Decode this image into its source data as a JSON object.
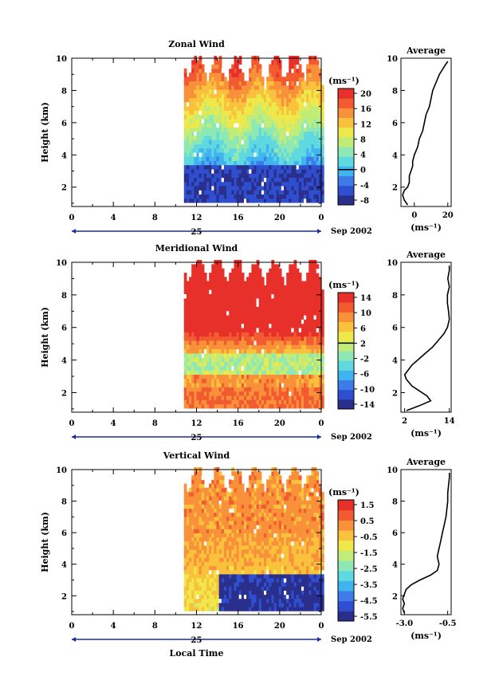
{
  "chart_data": [
    {
      "type": "heatmap",
      "title": "Zonal Wind",
      "ylabel": "Height (km)",
      "y_ticks": [
        "2",
        "4",
        "6",
        "8",
        "10"
      ],
      "ylim": [
        0.8,
        10
      ],
      "x_ticks": [
        "0",
        "4",
        "8",
        "12",
        "16",
        "20",
        "0"
      ],
      "date_day": "25",
      "date_month": "Sep 2002",
      "unit": "(ms⁻¹)",
      "colorbar_ticks": [
        "20",
        "16",
        "12",
        "8",
        "4",
        "0",
        "-4",
        "-8"
      ],
      "colorbar_range": [
        -10,
        22
      ],
      "zero_line": 0,
      "data_window_hours": [
        10.8,
        24
      ],
      "profile": {
        "title": "Average",
        "x_ticks": [
          "0",
          "20"
        ],
        "xlabel": "(ms⁻¹)",
        "xlim": [
          -8,
          22
        ],
        "heights": [
          0.9,
          1.2,
          1.5,
          1.8,
          2.0,
          2.3,
          2.7,
          3.0,
          3.3,
          3.6,
          4.0,
          4.5,
          5.0,
          5.5,
          6.0,
          6.5,
          7.0,
          7.5,
          8.0,
          8.5,
          9.0,
          9.5,
          9.8
        ],
        "values": [
          -4,
          -6,
          -7,
          -6,
          -4,
          -3,
          -3,
          -2,
          -1,
          -1,
          0,
          2,
          3,
          5,
          6,
          7,
          9,
          10,
          11,
          13,
          15,
          18,
          20
        ]
      }
    },
    {
      "type": "heatmap",
      "title": "Meridional Wind",
      "ylabel": "Height (km)",
      "y_ticks": [
        "2",
        "4",
        "6",
        "8",
        "10"
      ],
      "ylim": [
        0.8,
        10
      ],
      "x_ticks": [
        "0",
        "4",
        "8",
        "12",
        "16",
        "20",
        "0"
      ],
      "date_day": "25",
      "date_month": "Sep 2002",
      "unit": "(ms⁻¹)",
      "colorbar_ticks": [
        "14",
        "10",
        "6",
        "2",
        "-2",
        "-6",
        "-10",
        "-14"
      ],
      "colorbar_range": [
        -16,
        16
      ],
      "zero_line": 2,
      "data_window_hours": [
        10.8,
        24
      ],
      "profile": {
        "title": "Average",
        "x_ticks": [
          "2",
          "14"
        ],
        "xlabel": "(ms⁻¹)",
        "xlim": [
          1,
          14.5
        ],
        "heights": [
          0.9,
          1.2,
          1.5,
          1.8,
          2.1,
          2.4,
          2.8,
          3.1,
          3.4,
          3.7,
          4.0,
          4.4,
          4.8,
          5.2,
          5.6,
          6.0,
          6.5,
          7.0,
          7.5,
          8.0,
          8.5,
          9.0,
          9.5,
          9.8
        ],
        "values": [
          2.5,
          6,
          9,
          8,
          6,
          4,
          2.5,
          2,
          3,
          4,
          5.5,
          7.5,
          9.5,
          11,
          12.5,
          13.5,
          14,
          13.8,
          13.5,
          13.5,
          14,
          13.6,
          14,
          14
        ]
      }
    },
    {
      "type": "heatmap",
      "title": "Vertical Wind",
      "ylabel": "Height (km)",
      "y_ticks": [
        "2",
        "4",
        "6",
        "8",
        "10"
      ],
      "ylim": [
        0.8,
        10
      ],
      "x_ticks": [
        "0",
        "4",
        "8",
        "12",
        "16",
        "20",
        "0"
      ],
      "date_day": "25",
      "date_month": "Sep 2002",
      "xlabel": "Local Time",
      "unit": "(ms⁻¹)",
      "colorbar_ticks": [
        "1.5",
        "0.5",
        "-0.5",
        "-1.5",
        "-2.5",
        "-3.5",
        "-4.5",
        "-5.5"
      ],
      "colorbar_range": [
        -6,
        2
      ],
      "data_window_hours": [
        10.8,
        24
      ],
      "profile": {
        "title": "Average",
        "x_ticks": [
          "-3.0",
          "-0.5"
        ],
        "xlabel": "(ms⁻¹)",
        "xlim": [
          -3.2,
          -0.3
        ],
        "heights": [
          0.9,
          1.2,
          1.5,
          1.8,
          2.1,
          2.4,
          2.7,
          3.0,
          3.3,
          3.6,
          4.0,
          4.5,
          5.0,
          5.5,
          6.0,
          6.5,
          7.0,
          7.5,
          8.0,
          8.5,
          9.0,
          9.5,
          9.8
        ],
        "values": [
          -3.0,
          -3.1,
          -3.0,
          -3.1,
          -3.0,
          -2.9,
          -2.6,
          -2.1,
          -1.5,
          -1.1,
          -1.0,
          -1.1,
          -1.0,
          -0.9,
          -0.8,
          -0.7,
          -0.6,
          -0.55,
          -0.5,
          -0.5,
          -0.45,
          -0.4,
          -0.4
        ]
      }
    }
  ],
  "colors": {
    "scale": [
      "#2a2f8c",
      "#2f4fd0",
      "#3d7be8",
      "#40b4f0",
      "#5fd8e0",
      "#8ee8b4",
      "#c2ec78",
      "#eee84a",
      "#f9c13c",
      "#f8913a",
      "#f25a30",
      "#e8302a"
    ],
    "missing": "#ffffff",
    "date_bar": "#1c2a9e"
  }
}
